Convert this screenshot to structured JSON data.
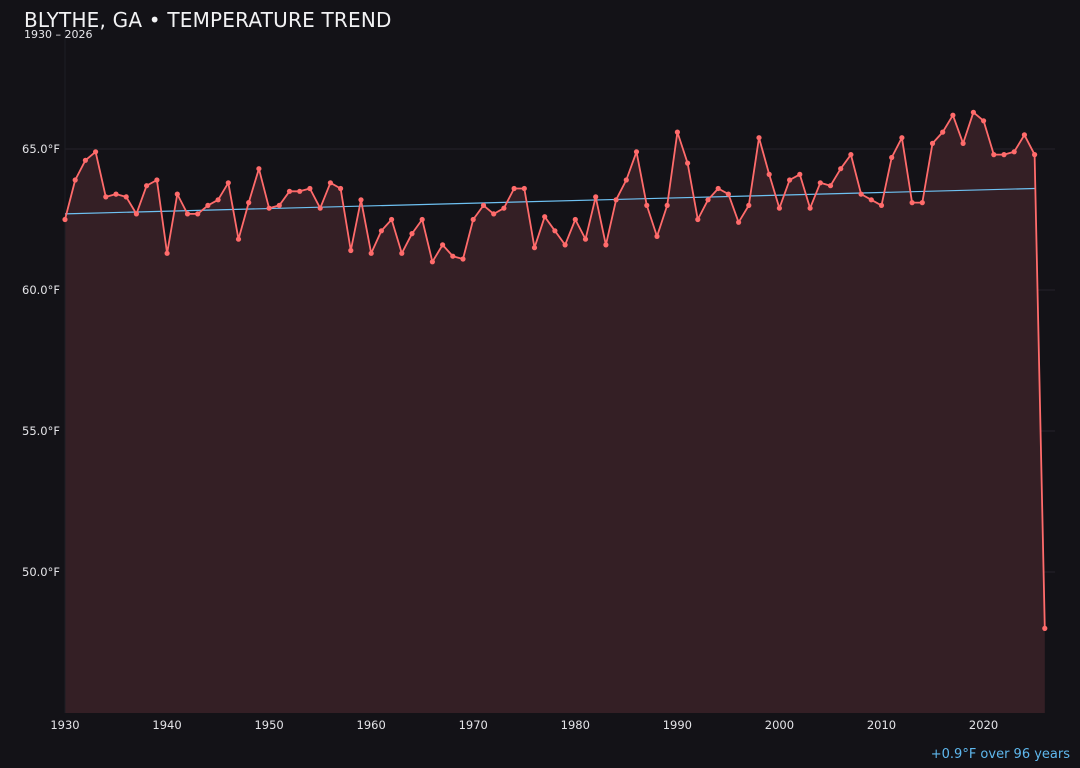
{
  "chart_data": {
    "type": "line",
    "title": "BLYTHE, GA • TEMPERATURE TREND",
    "subtitle": "1930 – 2026",
    "xlabel": "",
    "ylabel": "",
    "xlim": [
      1930,
      2027
    ],
    "ylim": [
      45,
      70
    ],
    "x_ticks": [
      1930,
      1940,
      1950,
      1960,
      1970,
      1980,
      1990,
      2000,
      2010,
      2020
    ],
    "y_ticks": [
      50,
      55,
      60,
      65
    ],
    "y_tick_labels": [
      "50.0°F",
      "55.0°F",
      "60.0°F",
      "65.0°F"
    ],
    "grid": "horizontal",
    "series": [
      {
        "color": "#ff6b6b",
        "x": [
          1930,
          1931,
          1932,
          1933,
          1934,
          1935,
          1936,
          1937,
          1938,
          1939,
          1940,
          1941,
          1942,
          1943,
          1944,
          1945,
          1946,
          1947,
          1948,
          1949,
          1950,
          1951,
          1952,
          1953,
          1954,
          1955,
          1956,
          1957,
          1958,
          1959,
          1960,
          1961,
          1962,
          1963,
          1964,
          1965,
          1966,
          1967,
          1968,
          1969,
          1970,
          1971,
          1972,
          1973,
          1974,
          1975,
          1976,
          1977,
          1978,
          1979,
          1980,
          1981,
          1982,
          1983,
          1984,
          1985,
          1986,
          1987,
          1988,
          1989,
          1990,
          1991,
          1992,
          1993,
          1994,
          1995,
          1996,
          1997,
          1998,
          1999,
          2000,
          2001,
          2002,
          2003,
          2004,
          2005,
          2006,
          2007,
          2008,
          2009,
          2010,
          2011,
          2012,
          2013,
          2014,
          2015,
          2016,
          2017,
          2018,
          2019,
          2020,
          2021,
          2022,
          2023,
          2024,
          2025,
          2026
        ],
        "y": [
          62.5,
          63.9,
          64.6,
          64.9,
          63.3,
          63.4,
          63.3,
          62.7,
          63.7,
          63.9,
          61.3,
          63.4,
          62.7,
          62.7,
          63.0,
          63.2,
          63.8,
          61.8,
          63.1,
          64.3,
          62.9,
          63.0,
          63.5,
          63.5,
          63.6,
          62.9,
          63.8,
          63.6,
          61.4,
          63.2,
          61.3,
          62.1,
          62.5,
          61.3,
          62.0,
          62.5,
          61.0,
          61.6,
          61.2,
          61.1,
          62.5,
          63.0,
          62.7,
          62.9,
          63.6,
          63.6,
          61.5,
          62.6,
          62.1,
          61.6,
          62.5,
          61.8,
          63.3,
          61.6,
          63.2,
          63.9,
          64.9,
          63.0,
          61.9,
          63.0,
          65.6,
          64.5,
          62.5,
          63.2,
          63.6,
          63.4,
          62.4,
          63.0,
          65.4,
          64.1,
          62.9,
          63.9,
          64.1,
          62.9,
          63.8,
          63.7,
          64.3,
          64.8,
          63.4,
          63.2,
          63.0,
          64.7,
          65.4,
          63.1,
          63.1,
          65.2,
          65.6,
          66.2,
          65.2,
          66.3,
          66.0,
          64.8,
          64.8,
          64.9,
          65.5,
          64.8,
          48.0
        ]
      }
    ],
    "trendline": {
      "color": "#6ec1f2",
      "x": [
        1930,
        2025
      ],
      "y": [
        62.7,
        63.6
      ]
    },
    "annotation": "+0.9°F over 96 years",
    "colors": {
      "background": "#131217",
      "line": "#ff6b6b",
      "area": "#341f25",
      "trend": "#6ec1f2",
      "annotation": "#5fb8ee",
      "grid": "#25232b",
      "text": "#e4e4e8"
    }
  }
}
